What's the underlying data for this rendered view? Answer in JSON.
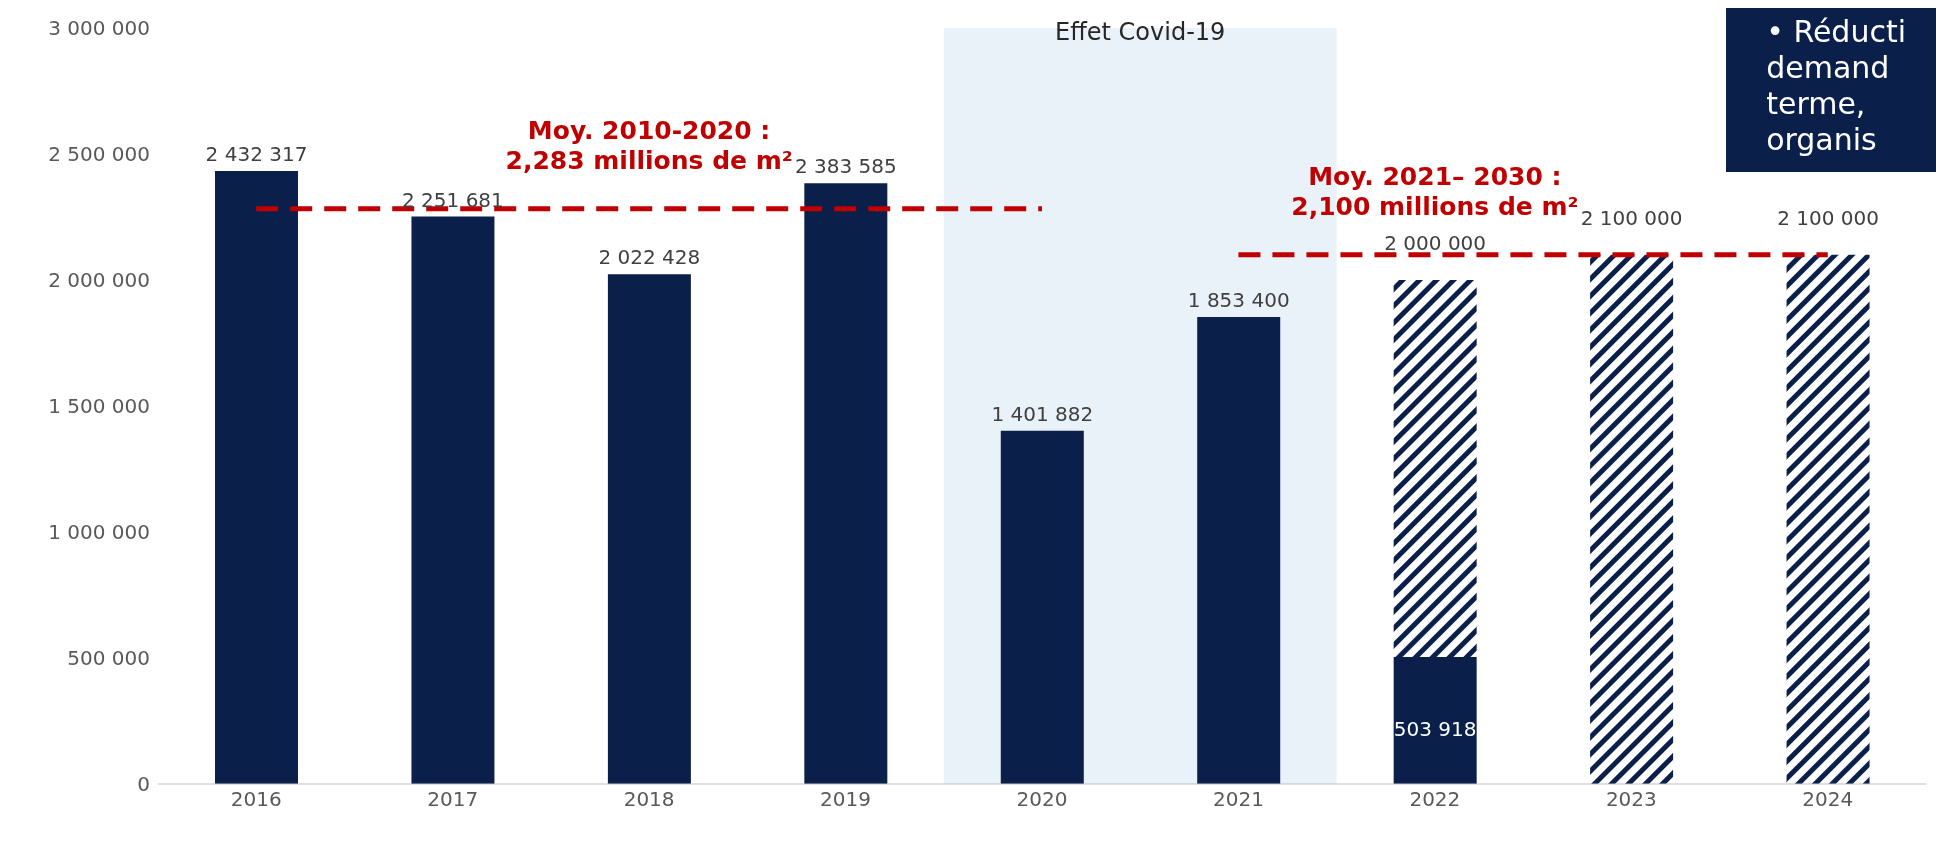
{
  "chart_data": {
    "type": "bar",
    "stacked": true,
    "categories": [
      "2016",
      "2017",
      "2018",
      "2019",
      "2020",
      "2021",
      "2022",
      "2023",
      "2024"
    ],
    "series": [
      {
        "color": "#0a1f4a",
        "values": [
          2432317,
          2251681,
          2022428,
          2383585,
          1401882,
          1853400,
          503918,
          null,
          null
        ],
        "value_labels": [
          "2 432 317",
          "2 251 681",
          "2 022 428",
          "2 383 585",
          "1 401 882",
          "1 853 400",
          "503 918",
          null,
          null
        ]
      },
      {
        "color": "#0a1f4a",
        "values": [
          null,
          null,
          null,
          null,
          null,
          null,
          1496082,
          2100000,
          2100000
        ]
      },
      {
        "type": "line",
        "color": "#c00000",
        "line_style": "dashed",
        "marker": "none",
        "values": [
          2283000,
          2283000,
          2283000,
          2283000,
          2283000,
          null,
          null,
          null,
          null
        ]
      },
      {
        "type": "line",
        "color": "#c00000",
        "line_style": "dashed",
        "marker": "none",
        "values": [
          null,
          null,
          null,
          null,
          null,
          2100000,
          2100000,
          2100000,
          2100000
        ]
      }
    ],
    "totals": [
      null,
      null,
      null,
      null,
      null,
      null,
      "2 000 000",
      "2 100 000",
      "2 100 000"
    ],
    "ylim": [
      0,
      3000000
    ],
    "yticks": [
      0,
      {
        "value": 500000,
        "label": "500 000"
      },
      {
        "value": 1000000,
        "label": "1 000 000"
      },
      {
        "value": 1500000,
        "label": "1 500 000"
      },
      {
        "value": 2000000,
        "label": "2 000 000"
      },
      {
        "value": 2500000,
        "label": "2 500 000"
      },
      {
        "value": 3000000,
        "label": "3 000 000"
      }
    ],
    "grid": false,
    "legend": false,
    "bands": [
      {
        "axis": "x",
        "from": "2020",
        "to": "2021",
        "label": "Effet Covid-19",
        "color": "#e9f1f9"
      }
    ],
    "annotations": [
      {
        "text": "Moy. 2010-2020 :\n2,283 millions de m²",
        "x": "2018",
        "y": 2283000
      },
      {
        "text": "Moy. 2021– 2030 :\n2,100 millions de m²",
        "x": "2022",
        "y": 2100000
      },
      "• Réducti\ndemand\nterme,\norganis"
    ]
  }
}
